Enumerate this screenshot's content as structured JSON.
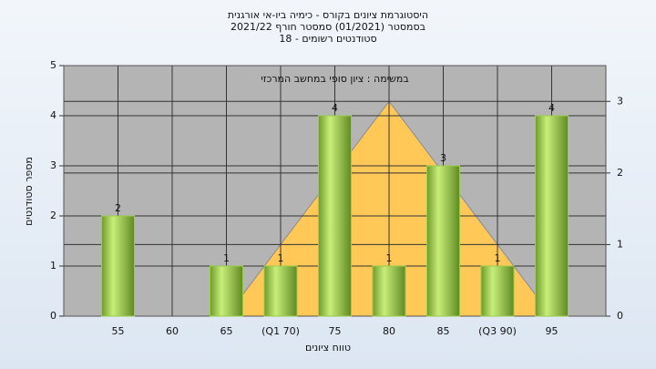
{
  "chart_data": {
    "type": "bar",
    "title": "היסטוגרמת ציונים בקורס - כימיה ביו-אי אורגנית",
    "subtitle": "בסמסטר  (01/2021)  סמסטר חורף 2021/22",
    "subtitle2": "סטודנטים רשומים - 18",
    "annotation": "במשימה : ציון סופי במחשב המרכזי",
    "x_label": "טווח ציונים",
    "y_label": "מספר סטודנטים",
    "categories": [
      "55",
      "60",
      "65",
      "(Q1 70)",
      "75",
      "80",
      "85",
      "(Q3 90)",
      "95"
    ],
    "series": [
      {
        "values": [
          2,
          0,
          1,
          1,
          4,
          1,
          3,
          1,
          4
        ],
        "color": "#9acd4a"
      },
      {
        "values": [
          null,
          null,
          0,
          null,
          null,
          3,
          null,
          null,
          0
        ],
        "color": "#ffc857",
        "axis": "y2"
      }
    ],
    "ylim": [
      0,
      5
    ],
    "yticks": [
      0,
      1,
      2,
      3,
      4,
      5
    ],
    "y2lim": [
      0,
      3.5
    ],
    "y2ticks": [
      0,
      1,
      2,
      3
    ],
    "grid": true
  }
}
